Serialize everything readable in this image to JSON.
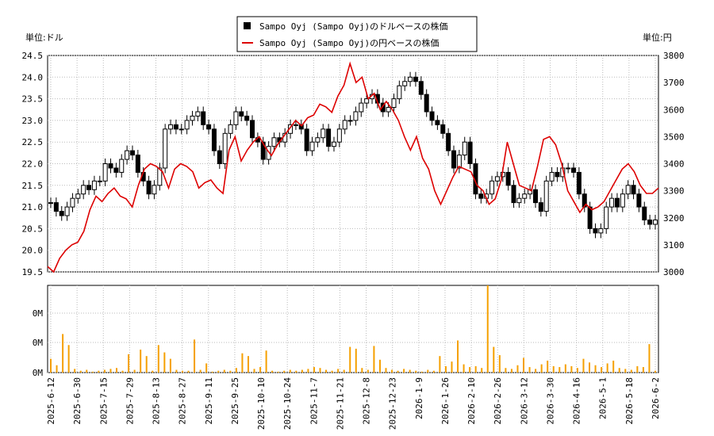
{
  "chart_data": [
    {
      "type": "candlestick+line",
      "legend": {
        "placement": "top-center",
        "entries": [
          {
            "label": "Sampo Oyj (Sampo Oyj)のドルベースの株価",
            "color": "#000000",
            "marker": "square"
          },
          {
            "label": "Sampo Oyj (Sampo Oyj)の円ベースの株価",
            "color": "#dd0000",
            "marker": "line"
          }
        ]
      },
      "left_axis": {
        "unit_label": "単位:ドル",
        "ylim": [
          19.5,
          24.5
        ],
        "ticks": [
          "19.5",
          "20.0",
          "20.5",
          "21.0",
          "21.5",
          "22.0",
          "22.5",
          "23.0",
          "23.5",
          "24.0",
          "24.5"
        ]
      },
      "right_axis": {
        "unit_label": "単位:円",
        "ylim": [
          3000,
          3800
        ],
        "ticks": [
          "3000",
          "3100",
          "3200",
          "3300",
          "3400",
          "3500",
          "3600",
          "3700",
          "3800"
        ]
      },
      "x_ticks": [
        "2025-6-12",
        "2025-6-30",
        "2025-7-15",
        "2025-7-29",
        "2025-8-13",
        "2025-8-27",
        "2025-9-11",
        "2025-9-25",
        "2025-10-10",
        "2025-10-24",
        "2025-11-7",
        "2025-11-21",
        "2025-12-8",
        "2025-12-23",
        "2026-1-9",
        "2026-1-26",
        "2026-2-10",
        "2026-2-26",
        "2026-3-12",
        "2026-3-30",
        "2026-4-16",
        "2026-5-1",
        "2026-5-18",
        "2026-6-2"
      ],
      "grid": true,
      "series": [
        {
          "name": "Sampo Oyj (Sampo Oyj)のドルベースの株価",
          "axis": "left",
          "style": "candlestick",
          "close": [
            21.1,
            20.9,
            20.8,
            21.0,
            21.2,
            21.3,
            21.5,
            21.4,
            21.6,
            21.6,
            22.0,
            21.9,
            21.8,
            22.1,
            22.3,
            22.2,
            21.8,
            21.6,
            21.3,
            21.5,
            21.9,
            22.8,
            22.9,
            22.8,
            22.8,
            23.0,
            23.1,
            23.2,
            22.9,
            22.8,
            22.3,
            22.0,
            22.7,
            22.9,
            23.2,
            23.1,
            23.0,
            22.6,
            22.5,
            22.1,
            22.4,
            22.6,
            22.5,
            22.7,
            22.9,
            22.9,
            22.8,
            22.3,
            22.5,
            22.6,
            22.8,
            22.4,
            22.5,
            22.8,
            23.0,
            23.0,
            23.2,
            23.4,
            23.5,
            23.6,
            23.4,
            23.2,
            23.3,
            23.5,
            23.8,
            23.9,
            24.0,
            23.9,
            23.6,
            23.2,
            23.0,
            22.9,
            22.7,
            22.3,
            21.9,
            22.2,
            22.5,
            22.0,
            21.3,
            21.2,
            21.3,
            21.6,
            21.7,
            21.8,
            21.5,
            21.1,
            21.2,
            21.3,
            21.4,
            21.1,
            20.9,
            21.6,
            21.8,
            21.7,
            21.9,
            21.9,
            21.8,
            21.3,
            21.0,
            20.5,
            20.4,
            20.5,
            21.0,
            21.2,
            21.0,
            21.3,
            21.5,
            21.3,
            21.0,
            20.7,
            20.6,
            20.7
          ]
        },
        {
          "name": "Sampo Oyj (Sampo Oyj)の円ベースの株価",
          "axis": "right",
          "style": "line",
          "color": "#dd0000",
          "values": [
            3020,
            3000,
            3050,
            3080,
            3100,
            3110,
            3150,
            3230,
            3280,
            3260,
            3290,
            3310,
            3280,
            3270,
            3240,
            3320,
            3380,
            3400,
            3390,
            3370,
            3310,
            3380,
            3400,
            3390,
            3370,
            3310,
            3330,
            3340,
            3310,
            3290,
            3450,
            3500,
            3410,
            3450,
            3480,
            3500,
            3460,
            3430,
            3470,
            3500,
            3530,
            3560,
            3540,
            3570,
            3580,
            3620,
            3610,
            3590,
            3650,
            3690,
            3770,
            3700,
            3720,
            3640,
            3660,
            3600,
            3630,
            3600,
            3560,
            3500,
            3450,
            3500,
            3420,
            3380,
            3300,
            3250,
            3300,
            3350,
            3390,
            3380,
            3370,
            3320,
            3300,
            3250,
            3270,
            3340,
            3480,
            3400,
            3320,
            3310,
            3300,
            3390,
            3490,
            3500,
            3470,
            3400,
            3300,
            3260,
            3220,
            3250,
            3230,
            3240,
            3260,
            3300,
            3340,
            3380,
            3400,
            3370,
            3320,
            3290,
            3290,
            3310
          ]
        }
      ]
    },
    {
      "type": "bar",
      "axis_ticks": [
        "0M",
        "0M",
        "0M"
      ],
      "grid": true,
      "series": [
        {
          "name": "",
          "color": "#f5a000",
          "values": [
            1.5,
            0.8,
            4.2,
            3.0,
            0.4,
            0.2,
            0.3,
            0.1,
            0.2,
            0.3,
            0.4,
            0.5,
            0.2,
            2.0,
            0.3,
            2.5,
            1.8,
            0.2,
            3.0,
            2.2,
            1.5,
            0.3,
            0.2,
            0.2,
            3.6,
            0.3,
            1.0,
            0.1,
            0.2,
            0.3,
            0.2,
            0.5,
            2.1,
            1.8,
            0.4,
            0.6,
            2.4,
            0.2,
            0.1,
            0.2,
            0.3,
            0.2,
            0.3,
            0.4,
            0.6,
            0.5,
            0.3,
            0.2,
            0.4,
            0.3,
            2.8,
            2.6,
            0.5,
            0.3,
            2.9,
            1.4,
            0.5,
            0.3,
            0.2,
            0.4,
            0.3,
            0.2,
            0.1,
            0.3,
            0.2,
            1.8,
            0.7,
            1.2,
            3.5,
            0.9,
            0.6,
            0.7,
            0.5,
            9.5,
            2.8,
            1.9,
            0.5,
            0.4,
            0.8,
            1.6,
            0.6,
            0.4,
            0.9,
            1.3,
            0.7,
            0.6,
            0.9,
            0.7,
            0.5,
            1.5,
            1.1,
            0.8,
            0.6,
            1.0,
            1.3,
            0.5,
            0.4,
            0.3,
            0.7,
            0.6,
            3.1,
            0.2
          ]
        }
      ]
    }
  ]
}
